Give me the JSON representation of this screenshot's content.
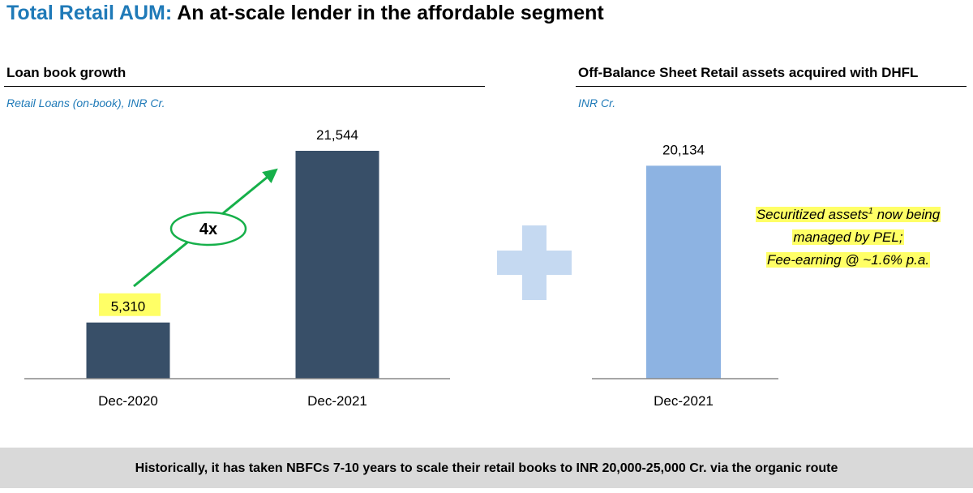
{
  "title": {
    "accent": "Total Retail AUM:",
    "rest": " An at-scale lender in the affordable segment"
  },
  "colors": {
    "title_accent": "#1f7ab8",
    "bar_dark": "#384f68",
    "bar_light": "#8db3e2",
    "arrow_green": "#16b04a",
    "plus": "#c5d9f1",
    "highlight": "#ffff66",
    "footer_bg": "#d9d9d9"
  },
  "left_panel": {
    "heading": "Loan book growth",
    "units": "Retail Loans (on-book), INR Cr.",
    "multiplier": "4x"
  },
  "right_panel": {
    "heading": "Off-Balance Sheet Retail assets acquired with DHFL",
    "units": "INR Cr.",
    "note": {
      "line1_a": "Securitized assets",
      "line1_sup": "1",
      "line1_b": " now being",
      "line2": "managed by PEL;",
      "line3": "Fee-earning @ ~1.6% p.a."
    }
  },
  "plus_icon": "plus-icon",
  "chart_data": [
    {
      "type": "bar",
      "title": "Loan book growth",
      "ylabel": "Retail Loans (on-book), INR Cr.",
      "categories": [
        "Dec-2020",
        "Dec-2021"
      ],
      "values": [
        5310,
        21544
      ],
      "value_labels": [
        "5,310",
        "21,544"
      ],
      "ylim": [
        0,
        23000
      ],
      "annotation": "4x"
    },
    {
      "type": "bar",
      "title": "Off-Balance Sheet Retail assets acquired with DHFL",
      "ylabel": "INR Cr.",
      "categories": [
        "Dec-2021"
      ],
      "values": [
        20134
      ],
      "value_labels": [
        "20,134"
      ],
      "ylim": [
        0,
        23000
      ]
    }
  ],
  "footer": {
    "text": "Historically, it has taken NBFCs 7-10 years to scale their retail books to INR 20,000-25,000 Cr. via the organic route"
  }
}
